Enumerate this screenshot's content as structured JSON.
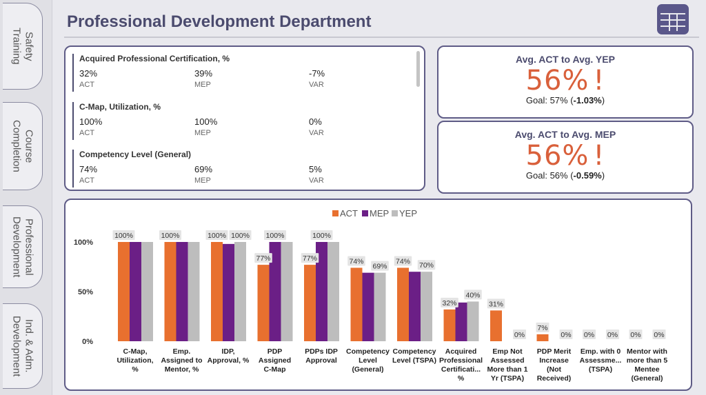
{
  "nav": {
    "tabs": [
      {
        "label": "Safety\nTraining",
        "active": false
      },
      {
        "label": "Course\nCompletion",
        "active": false
      },
      {
        "label": "Professional\nDevelopment",
        "active": true
      },
      {
        "label": "Ind. & Adm.\nDevelopment",
        "active": false
      }
    ]
  },
  "header": {
    "title": "Professional Development Department",
    "menu_icon": "table-grid-icon"
  },
  "kpi_list": [
    {
      "name": "Acquired Professional Certification, %",
      "act": "32%",
      "mep": "39%",
      "var": "-7%",
      "act_label": "ACT",
      "mep_label": "MEP",
      "var_label": "VAR"
    },
    {
      "name": "C-Map, Utilization, %",
      "act": "100%",
      "mep": "100%",
      "var": "0%",
      "act_label": "ACT",
      "mep_label": "MEP",
      "var_label": "VAR"
    },
    {
      "name": "Competency Level (General)",
      "act": "74%",
      "mep": "69%",
      "var": "5%",
      "act_label": "ACT",
      "mep_label": "MEP",
      "var_label": "VAR"
    }
  ],
  "kpi_cards": [
    {
      "title": "Avg. ACT to Avg. YEP",
      "value": "56%",
      "alert": "!",
      "goal_prefix": "Goal: 57% (",
      "goal_delta": "-1.03%",
      "goal_suffix": ")"
    },
    {
      "title": "Avg. ACT to Avg. MEP",
      "value": "56%",
      "alert": "!",
      "goal_prefix": "Goal: 56% (",
      "goal_delta": "-0.59%",
      "goal_suffix": ")"
    }
  ],
  "colors": {
    "act": "#e8702f",
    "mep": "#6b1f86",
    "yep": "#bdbdbd",
    "accent": "#5a578a",
    "alert": "#d9603b"
  },
  "chart_data": {
    "type": "bar",
    "legend_position": "top-center",
    "categories": [
      "C-Map, Utilization, %",
      "Emp. Assigned to Mentor, %",
      "IDP, Approval, %",
      "PDP Assigned C-Map",
      "PDPs IDP Approval",
      "Competency Level (General)",
      "Competency Level (TSPA)",
      "Acquired Professional Certificati... %",
      "Emp Not Assessed More than 1 Yr (TSPA)",
      "PDP Merit Increase (Not Received)",
      "Emp. with 0 Assessme... (TSPA)",
      "Mentor with more than 5 Mentee (General)"
    ],
    "category_lines": [
      [
        "C-Map,",
        "Utilization,",
        "%"
      ],
      [
        "Emp.",
        "Assigned to",
        "Mentor, %"
      ],
      [
        "IDP,",
        "Approval, %"
      ],
      [
        "PDP",
        "Assigned",
        "C-Map"
      ],
      [
        "PDPs IDP",
        "Approval"
      ],
      [
        "Competency",
        "Level",
        "(General)"
      ],
      [
        "Competency",
        "Level (TSPA)"
      ],
      [
        "Acquired",
        "Professional",
        "Certificati...",
        "%"
      ],
      [
        "Emp Not",
        "Assessed",
        "More than 1",
        "Yr (TSPA)"
      ],
      [
        "PDP Merit",
        "Increase",
        "(Not",
        "Received)"
      ],
      [
        "Emp. with 0",
        "Assessme...",
        "(TSPA)"
      ],
      [
        "Mentor with",
        "more than 5",
        "Mentee",
        "(General)"
      ]
    ],
    "series": [
      {
        "name": "ACT",
        "values": [
          100,
          100,
          100,
          77,
          77,
          74,
          74,
          32,
          31,
          7,
          0,
          0
        ]
      },
      {
        "name": "MEP",
        "values": [
          100,
          100,
          98,
          100,
          100,
          69,
          70,
          39,
          0,
          0,
          0,
          0
        ]
      },
      {
        "name": "YEP",
        "values": [
          100,
          100,
          100,
          100,
          100,
          69,
          70,
          40,
          0,
          0,
          0,
          0
        ]
      }
    ],
    "data_labels": [
      [
        {
          "text": "100%",
          "series": 0
        }
      ],
      [
        {
          "text": "100%",
          "series": 0
        }
      ],
      [
        {
          "text": "100%",
          "series": 0
        },
        {
          "text": "100%",
          "series": 2
        }
      ],
      [
        {
          "text": "77%",
          "series": 0
        },
        {
          "text": "100%",
          "series": 1
        }
      ],
      [
        {
          "text": "77%",
          "series": 0
        },
        {
          "text": "100%",
          "series": 1
        }
      ],
      [
        {
          "text": "74%",
          "series": 0
        },
        {
          "text": "69%",
          "series": 2
        }
      ],
      [
        {
          "text": "74%",
          "series": 0
        },
        {
          "text": "70%",
          "series": 2
        }
      ],
      [
        {
          "text": "32%",
          "series": 0
        },
        {
          "text": "40%",
          "series": 2
        }
      ],
      [
        {
          "text": "31%",
          "series": 0
        },
        {
          "text": "0%",
          "series": 2
        }
      ],
      [
        {
          "text": "7%",
          "series": 0
        },
        {
          "text": "0%",
          "series": 2
        }
      ],
      [
        {
          "text": "0%",
          "series": 0
        },
        {
          "text": "0%",
          "series": 2
        }
      ],
      [
        {
          "text": "0%",
          "series": 0
        },
        {
          "text": "0%",
          "series": 2
        }
      ]
    ],
    "y_ticks": [
      {
        "value": 0,
        "label": "0%"
      },
      {
        "value": 50,
        "label": "50%"
      },
      {
        "value": 100,
        "label": "100%"
      }
    ],
    "ylim": [
      0,
      100
    ],
    "grid": false
  }
}
